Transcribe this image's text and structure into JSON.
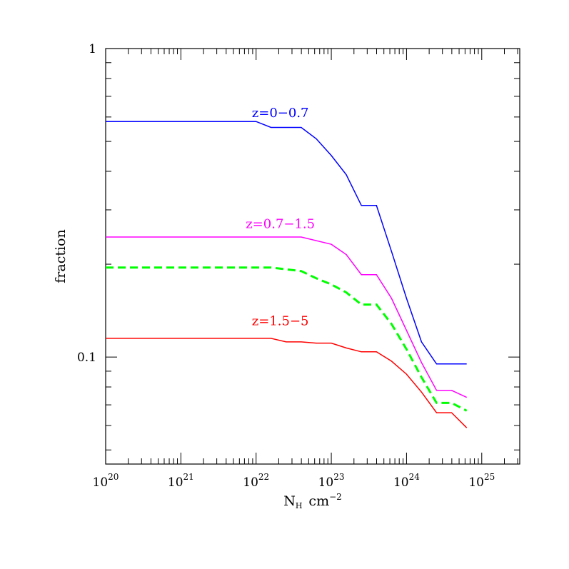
{
  "chart_data": {
    "type": "line",
    "xlabel": "N",
    "xlabel_subscript": "H",
    "xlabel_unit": "cm",
    "xlabel_unit_exponent": "−2",
    "ylabel": "fraction",
    "x_scale": "log",
    "y_scale": "log",
    "xlim": [
      1e+20,
      3.2e+25
    ],
    "ylim": [
      0.045,
      1.0
    ],
    "x_ticks": [
      {
        "value": 1e+20,
        "base": "10",
        "exp": "20"
      },
      {
        "value": 1e+21,
        "base": "10",
        "exp": "21"
      },
      {
        "value": 1e+22,
        "base": "10",
        "exp": "22"
      },
      {
        "value": 1e+23,
        "base": "10",
        "exp": "23"
      },
      {
        "value": 1e+24,
        "base": "10",
        "exp": "24"
      },
      {
        "value": 1e+25,
        "base": "10",
        "exp": "25"
      }
    ],
    "y_ticks": [
      {
        "value": 1.0,
        "label": "1"
      },
      {
        "value": 0.1,
        "label": "0.1"
      }
    ],
    "grid": false,
    "series": [
      {
        "name": "z=0−0.7",
        "color": "#0000ff",
        "dashed": false,
        "label_at": [
          2.1e+22,
          0.6
        ],
        "x": [
          1e+20,
          1e+22,
          1.58e+22,
          3.98e+22,
          6.31e+22,
          1e+23,
          1.58e+23,
          2.51e+23,
          3.98e+23,
          6.31e+23,
          1e+24,
          1.58e+24,
          2.51e+24,
          3.98e+24,
          6.31e+24
        ],
        "y": [
          0.58,
          0.58,
          0.555,
          0.555,
          0.51,
          0.45,
          0.39,
          0.31,
          0.31,
          0.22,
          0.155,
          0.112,
          0.095,
          0.095,
          0.095
        ]
      },
      {
        "name": "z=0.7−1.5",
        "color": "#ff00ff",
        "dashed": false,
        "label_at": [
          2.1e+22,
          0.262
        ],
        "x": [
          1e+20,
          1e+22,
          3.98e+22,
          1e+23,
          1.58e+23,
          2.51e+23,
          3.98e+23,
          6.31e+23,
          1e+24,
          1.58e+24,
          2.51e+24,
          3.98e+24,
          6.31e+24
        ],
        "y": [
          0.245,
          0.245,
          0.245,
          0.232,
          0.215,
          0.185,
          0.185,
          0.155,
          0.122,
          0.096,
          0.078,
          0.078,
          0.074
        ]
      },
      {
        "name": "",
        "color": "#00ff00",
        "dashed": true,
        "x": [
          1e+20,
          1e+22,
          1.58e+22,
          3.98e+22,
          6.31e+22,
          1e+23,
          1.58e+23,
          2.51e+23,
          3.98e+23,
          6.31e+23,
          1e+24,
          1.58e+24,
          2.51e+24,
          3.98e+24,
          6.31e+24
        ],
        "y": [
          0.195,
          0.195,
          0.195,
          0.19,
          0.18,
          0.172,
          0.162,
          0.148,
          0.148,
          0.128,
          0.106,
          0.086,
          0.071,
          0.071,
          0.067
        ]
      },
      {
        "name": "z=1.5−5",
        "color": "#ff0000",
        "dashed": false,
        "label_at": [
          2.1e+22,
          0.127
        ],
        "x": [
          1e+20,
          1e+22,
          1.58e+22,
          2.51e+22,
          3.98e+22,
          6.31e+22,
          1e+23,
          1.58e+23,
          2.51e+23,
          3.98e+23,
          6.31e+23,
          1e+24,
          1.58e+24,
          2.51e+24,
          3.98e+24,
          6.31e+24
        ],
        "y": [
          0.115,
          0.115,
          0.115,
          0.112,
          0.112,
          0.111,
          0.111,
          0.107,
          0.104,
          0.104,
          0.097,
          0.088,
          0.077,
          0.066,
          0.066,
          0.059
        ]
      }
    ]
  }
}
